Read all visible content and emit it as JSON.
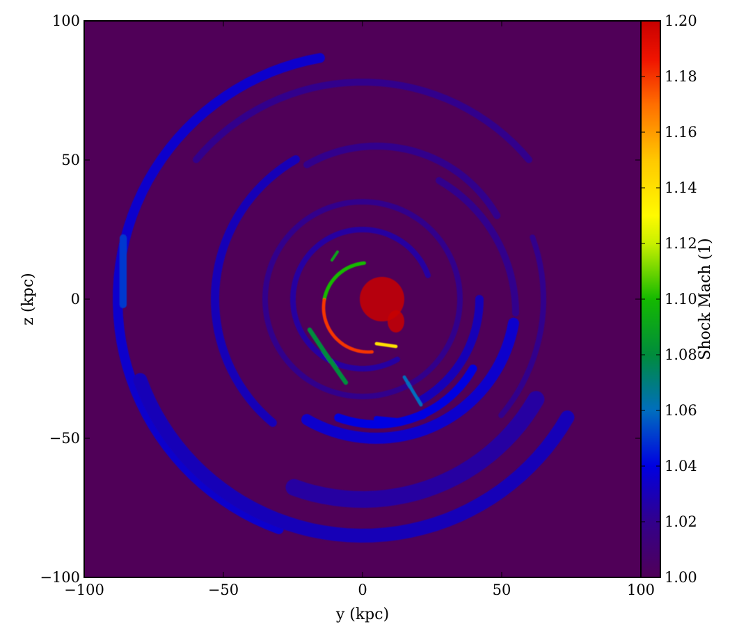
{
  "chart_data": {
    "type": "heatmap",
    "title": "",
    "xlabel": "y  (kpc)",
    "ylabel": "z  (kpc)",
    "xlim": [
      -100,
      100
    ],
    "ylim": [
      -100,
      100
    ],
    "xticks": [
      -100,
      -50,
      0,
      50,
      100
    ],
    "yticks": [
      -100,
      -50,
      0,
      50,
      100
    ],
    "xtick_labels": [
      "−100",
      "−50",
      "0",
      "50",
      "100"
    ],
    "ytick_labels": [
      "−100",
      "−50",
      "0",
      "50",
      "100"
    ],
    "colorbar": {
      "label": "Shock Mach  (1)",
      "vmin": 1.0,
      "vmax": 1.2,
      "colormap": "spectral",
      "ticks": [
        1.0,
        1.02,
        1.04,
        1.06,
        1.08,
        1.1,
        1.12,
        1.14,
        1.16,
        1.18,
        1.2
      ],
      "tick_labels": [
        "1.00",
        "1.02",
        "1.04",
        "1.06",
        "1.08",
        "1.10",
        "1.12",
        "1.14",
        "1.16",
        "1.18",
        "1.20"
      ]
    },
    "background_value": 1.0,
    "grid": false,
    "features": [
      {
        "kind": "arc",
        "cx": 0,
        "cy": 0,
        "r": 88,
        "a0": 100,
        "a1": 250,
        "value": 1.035,
        "width": 3.5
      },
      {
        "kind": "line",
        "points": [
          [
            -86,
            22
          ],
          [
            -86,
            -2
          ]
        ],
        "value": 1.05,
        "width": 2.5
      },
      {
        "kind": "arc",
        "cx": 0,
        "cy": 0,
        "r": 78,
        "a0": 40,
        "a1": 140,
        "value": 1.02,
        "width": 2.5
      },
      {
        "kind": "arc",
        "cx": 0,
        "cy": 0,
        "r": 85,
        "a0": 200,
        "a1": 330,
        "value": 1.03,
        "width": 5
      },
      {
        "kind": "arc",
        "cx": 0,
        "cy": 0,
        "r": 72,
        "a0": 250,
        "a1": 330,
        "value": 1.025,
        "width": 6
      },
      {
        "kind": "arc",
        "cx": 5,
        "cy": 0,
        "r": 58,
        "a0": 120,
        "a1": 230,
        "value": 1.03,
        "width": 3
      },
      {
        "kind": "arc",
        "cx": 5,
        "cy": 5,
        "r": 50,
        "a0": 30,
        "a1": 120,
        "value": 1.02,
        "width": 2.5
      },
      {
        "kind": "arc",
        "cx": 5,
        "cy": 0,
        "r": 50,
        "a0": 240,
        "a1": 350,
        "value": 1.035,
        "width": 4
      },
      {
        "kind": "arc",
        "cx": 5,
        "cy": -5,
        "r": 40,
        "a0": 250,
        "a1": 330,
        "value": 1.04,
        "width": 3
      },
      {
        "kind": "arc",
        "cx": 0,
        "cy": 0,
        "r": 35,
        "a0": 0,
        "a1": 360,
        "value": 1.02,
        "width": 2
      },
      {
        "kind": "arc",
        "cx": 0,
        "cy": 0,
        "r": 25,
        "a0": 20,
        "a1": 300,
        "value": 1.025,
        "width": 2
      },
      {
        "kind": "arc",
        "cx": 0,
        "cy": 0,
        "r": 42,
        "a0": 300,
        "a1": 360,
        "value": 1.03,
        "width": 3
      },
      {
        "kind": "arc",
        "cx": 0,
        "cy": -5,
        "r": 55,
        "a0": 0,
        "a1": 60,
        "value": 1.02,
        "width": 2.5
      },
      {
        "kind": "arc",
        "cx": 0,
        "cy": 0,
        "r": 65,
        "a0": 320,
        "a1": 380,
        "value": 1.02,
        "width": 2
      },
      {
        "kind": "line",
        "points": [
          [
            -19,
            -11
          ],
          [
            -13,
            -20
          ],
          [
            -6,
            -30
          ]
        ],
        "value": 1.08,
        "width": 1.6
      },
      {
        "kind": "line",
        "points": [
          [
            -11,
            14
          ],
          [
            -9,
            17
          ]
        ],
        "value": 1.09,
        "width": 1
      },
      {
        "kind": "line",
        "points": [
          [
            15,
            -28
          ],
          [
            21,
            -38
          ]
        ],
        "value": 1.06,
        "width": 1.2
      },
      {
        "kind": "line",
        "points": [
          [
            5,
            -43
          ],
          [
            15,
            -44
          ],
          [
            22,
            -42
          ]
        ],
        "value": 1.04,
        "width": 2
      },
      {
        "kind": "arc",
        "cx": 2,
        "cy": -3,
        "r": 16,
        "a0": 95,
        "a1": 170,
        "value": 1.1,
        "width": 1.3
      },
      {
        "kind": "arc",
        "cx": 2,
        "cy": -3,
        "r": 16,
        "a0": 170,
        "a1": 275,
        "value": 1.18,
        "width": 1.2
      },
      {
        "kind": "line",
        "points": [
          [
            5,
            -16
          ],
          [
            12,
            -17
          ]
        ],
        "value": 1.14,
        "width": 1.2
      },
      {
        "kind": "blob",
        "cx": 7,
        "cy": 0,
        "rx": 8,
        "ry": 8,
        "value": 1.2
      },
      {
        "kind": "blob",
        "cx": 12,
        "cy": -8,
        "rx": 3,
        "ry": 4,
        "value": 1.2
      }
    ]
  }
}
